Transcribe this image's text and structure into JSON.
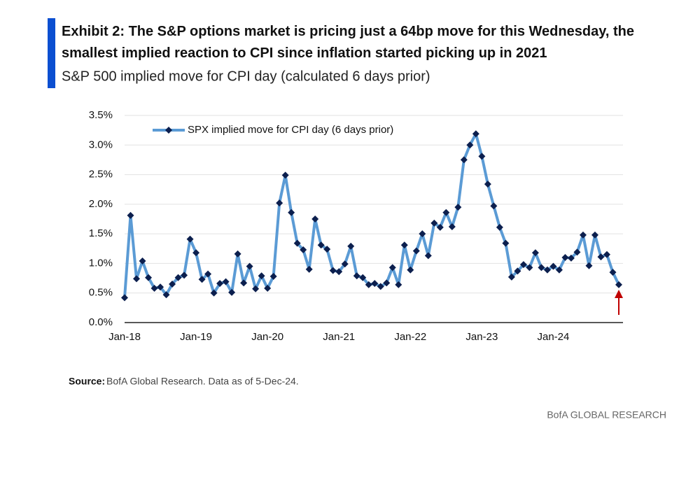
{
  "chart_data": {
    "type": "line",
    "title": "Exhibit 2: The S&P options market is pricing just a 64bp move for this Wednesday, the smallest implied reaction to CPI since inflation started picking up in 2021",
    "subtitle": "S&P 500 implied move for CPI day (calculated 6 days prior)",
    "source_label": "Source:",
    "source": "BofA Global Research. Data as of 5-Dec-24.",
    "footer": "BofA GLOBAL RESEARCH",
    "categories": [
      "Jan-18",
      null,
      null,
      null,
      null,
      null,
      null,
      null,
      null,
      null,
      null,
      null,
      "Jan-19",
      null,
      null,
      null,
      null,
      null,
      null,
      null,
      null,
      null,
      null,
      null,
      "Jan-20",
      null,
      null,
      null,
      null,
      null,
      null,
      null,
      null,
      null,
      null,
      null,
      "Jan-21",
      null,
      null,
      null,
      null,
      null,
      null,
      null,
      null,
      null,
      null,
      null,
      "Jan-22",
      null,
      null,
      null,
      null,
      null,
      null,
      null,
      null,
      null,
      null,
      null,
      "Jan-23",
      null,
      null,
      null,
      null,
      null,
      null,
      null,
      null,
      null,
      null,
      null,
      "Jan-24",
      null,
      null,
      null,
      null,
      null,
      null,
      null,
      null,
      null,
      null,
      null
    ],
    "series": [
      {
        "name": "SPX implied move for CPI day (6 days prior)",
        "color": "#5b9bd5",
        "marker_color": "#0c1f4e",
        "values": [
          0.42,
          1.81,
          0.74,
          1.04,
          0.76,
          0.58,
          0.6,
          0.47,
          0.65,
          0.76,
          0.8,
          1.41,
          1.18,
          0.73,
          0.82,
          0.5,
          0.66,
          0.69,
          0.51,
          1.16,
          0.67,
          0.95,
          0.57,
          0.79,
          0.58,
          0.78,
          2.02,
          2.49,
          1.86,
          1.34,
          1.23,
          0.9,
          1.75,
          1.31,
          1.24,
          0.88,
          0.86,
          0.99,
          1.29,
          0.79,
          0.76,
          0.64,
          0.66,
          0.61,
          0.67,
          0.93,
          0.64,
          1.31,
          0.89,
          1.21,
          1.5,
          1.13,
          1.68,
          1.61,
          1.86,
          1.62,
          1.95,
          2.75,
          3.0,
          3.19,
          2.81,
          2.34,
          1.97,
          1.61,
          1.34,
          0.77,
          0.87,
          0.98,
          0.93,
          1.18,
          0.93,
          0.89,
          0.95,
          0.89,
          1.1,
          1.09,
          1.19,
          1.48,
          0.96,
          1.48,
          1.11,
          1.15,
          0.85,
          0.64
        ]
      }
    ],
    "ylim": [
      0,
      3.5
    ],
    "yticks": [
      {
        "value": 0,
        "label": "0.0%"
      },
      {
        "value": 0.5,
        "label": "0.5%"
      },
      {
        "value": 1,
        "label": "1.0%"
      },
      {
        "value": 1.5,
        "label": "1.5%"
      },
      {
        "value": 2,
        "label": "2.0%"
      },
      {
        "value": 2.5,
        "label": "2.5%"
      },
      {
        "value": 3,
        "label": "3.0%"
      },
      {
        "value": 3.5,
        "label": "3.5%"
      }
    ],
    "grid": true,
    "legend": "top-left"
  }
}
